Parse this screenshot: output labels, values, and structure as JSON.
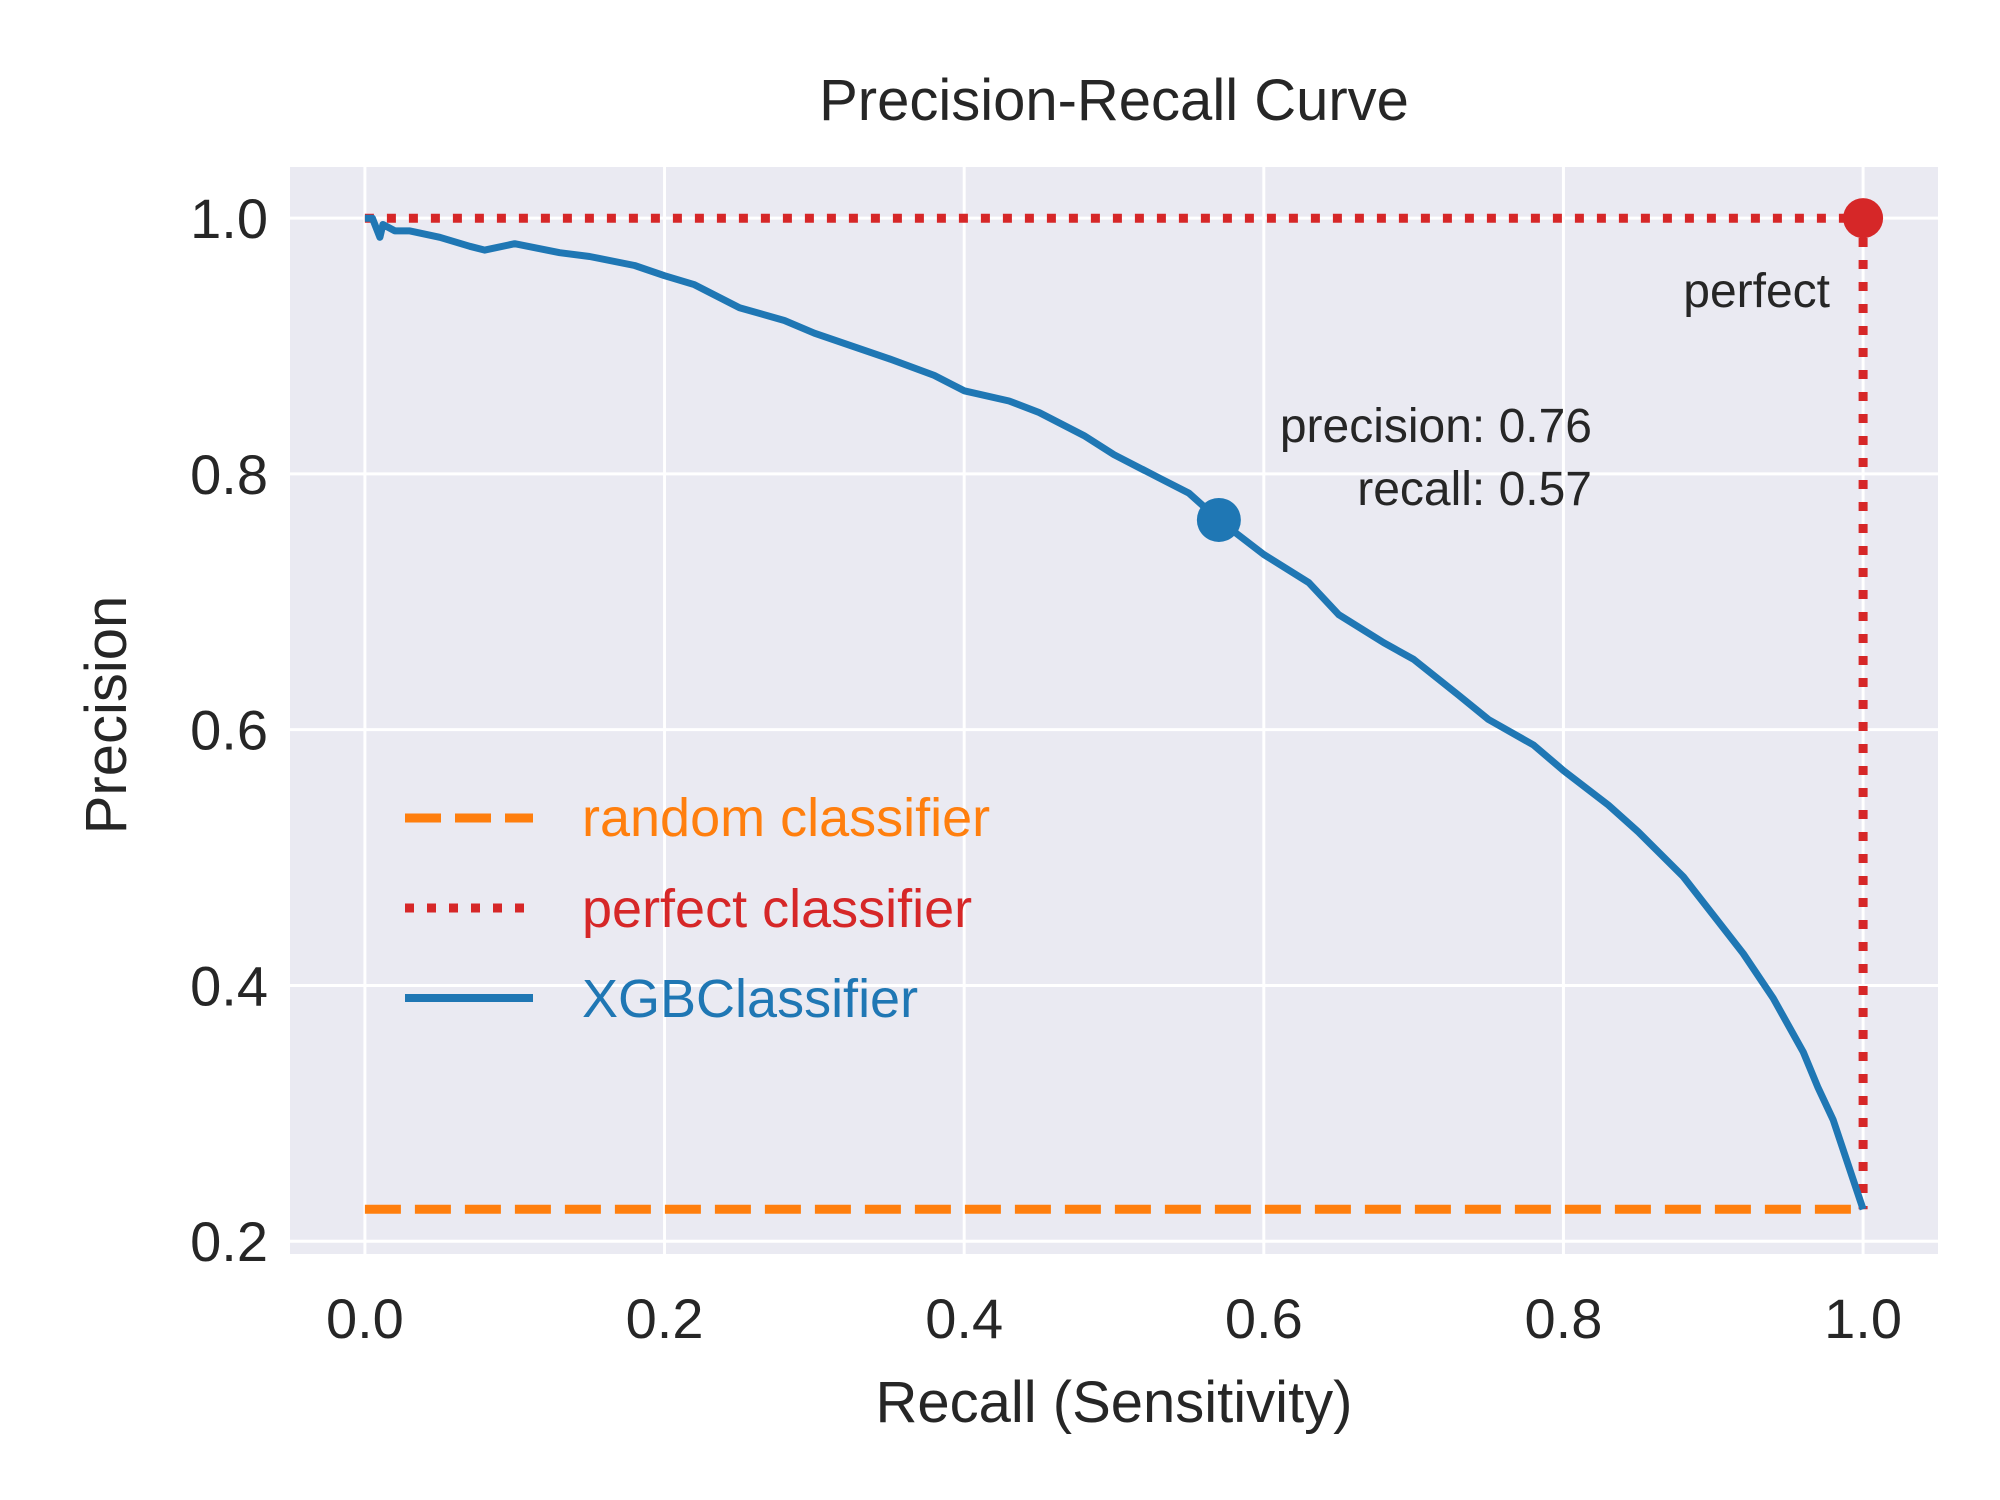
{
  "chart_data": {
    "type": "line",
    "title": "Precision-Recall Curve",
    "xlabel": "Recall (Sensitivity)",
    "ylabel": "Precision",
    "xlim": [
      -0.05,
      1.05
    ],
    "ylim": [
      0.19,
      1.04
    ],
    "xticks": [
      0.0,
      0.2,
      0.4,
      0.6,
      0.8,
      1.0
    ],
    "xtick_labels": [
      "0.0",
      "0.2",
      "0.4",
      "0.6",
      "0.8",
      "1.0"
    ],
    "yticks": [
      0.2,
      0.4,
      0.6,
      0.8,
      1.0
    ],
    "ytick_labels": [
      "0.2",
      "0.4",
      "0.6",
      "0.8",
      "1.0"
    ],
    "grid": true,
    "legend_position": "center-left",
    "colors": {
      "background": "#eaeaf2",
      "random": "#ff7f0e",
      "perfect": "#d62728",
      "model": "#1f77b4",
      "text": "#262626"
    },
    "series": [
      {
        "name": "random classifier",
        "style": "dashed",
        "x": [
          0.0,
          1.0
        ],
        "y": [
          0.225,
          0.225
        ]
      },
      {
        "name": "perfect classifier",
        "style": "dotted",
        "x": [
          0.0,
          1.0,
          1.0
        ],
        "y": [
          1.0,
          1.0,
          0.225
        ]
      },
      {
        "name": "XGBClassifier",
        "style": "solid",
        "x": [
          0.0,
          0.005,
          0.01,
          0.012,
          0.02,
          0.03,
          0.05,
          0.07,
          0.08,
          0.1,
          0.13,
          0.15,
          0.18,
          0.2,
          0.22,
          0.25,
          0.28,
          0.3,
          0.33,
          0.35,
          0.38,
          0.4,
          0.43,
          0.45,
          0.48,
          0.5,
          0.53,
          0.55,
          0.57,
          0.6,
          0.63,
          0.65,
          0.68,
          0.7,
          0.73,
          0.75,
          0.78,
          0.8,
          0.83,
          0.85,
          0.88,
          0.9,
          0.92,
          0.94,
          0.96,
          0.97,
          0.98,
          0.99,
          1.0
        ],
        "y": [
          1.0,
          1.0,
          0.985,
          0.995,
          0.99,
          0.99,
          0.985,
          0.978,
          0.975,
          0.98,
          0.973,
          0.97,
          0.963,
          0.955,
          0.948,
          0.93,
          0.92,
          0.91,
          0.898,
          0.89,
          0.877,
          0.865,
          0.857,
          0.848,
          0.83,
          0.815,
          0.797,
          0.785,
          0.764,
          0.737,
          0.715,
          0.69,
          0.668,
          0.655,
          0.627,
          0.608,
          0.588,
          0.568,
          0.541,
          0.52,
          0.485,
          0.455,
          0.425,
          0.39,
          0.348,
          0.32,
          0.295,
          0.26,
          0.225
        ]
      }
    ],
    "markers": [
      {
        "name": "threshold-point",
        "x": 0.57,
        "y": 0.764,
        "color": "#1f77b4"
      },
      {
        "name": "perfect-point",
        "x": 1.0,
        "y": 1.0,
        "color": "#d62728"
      }
    ],
    "annotations": [
      {
        "name": "threshold-precision",
        "text": "precision: 0.76"
      },
      {
        "name": "threshold-recall",
        "text": "recall: 0.57"
      },
      {
        "name": "perfect-label",
        "text": "perfect"
      }
    ]
  }
}
